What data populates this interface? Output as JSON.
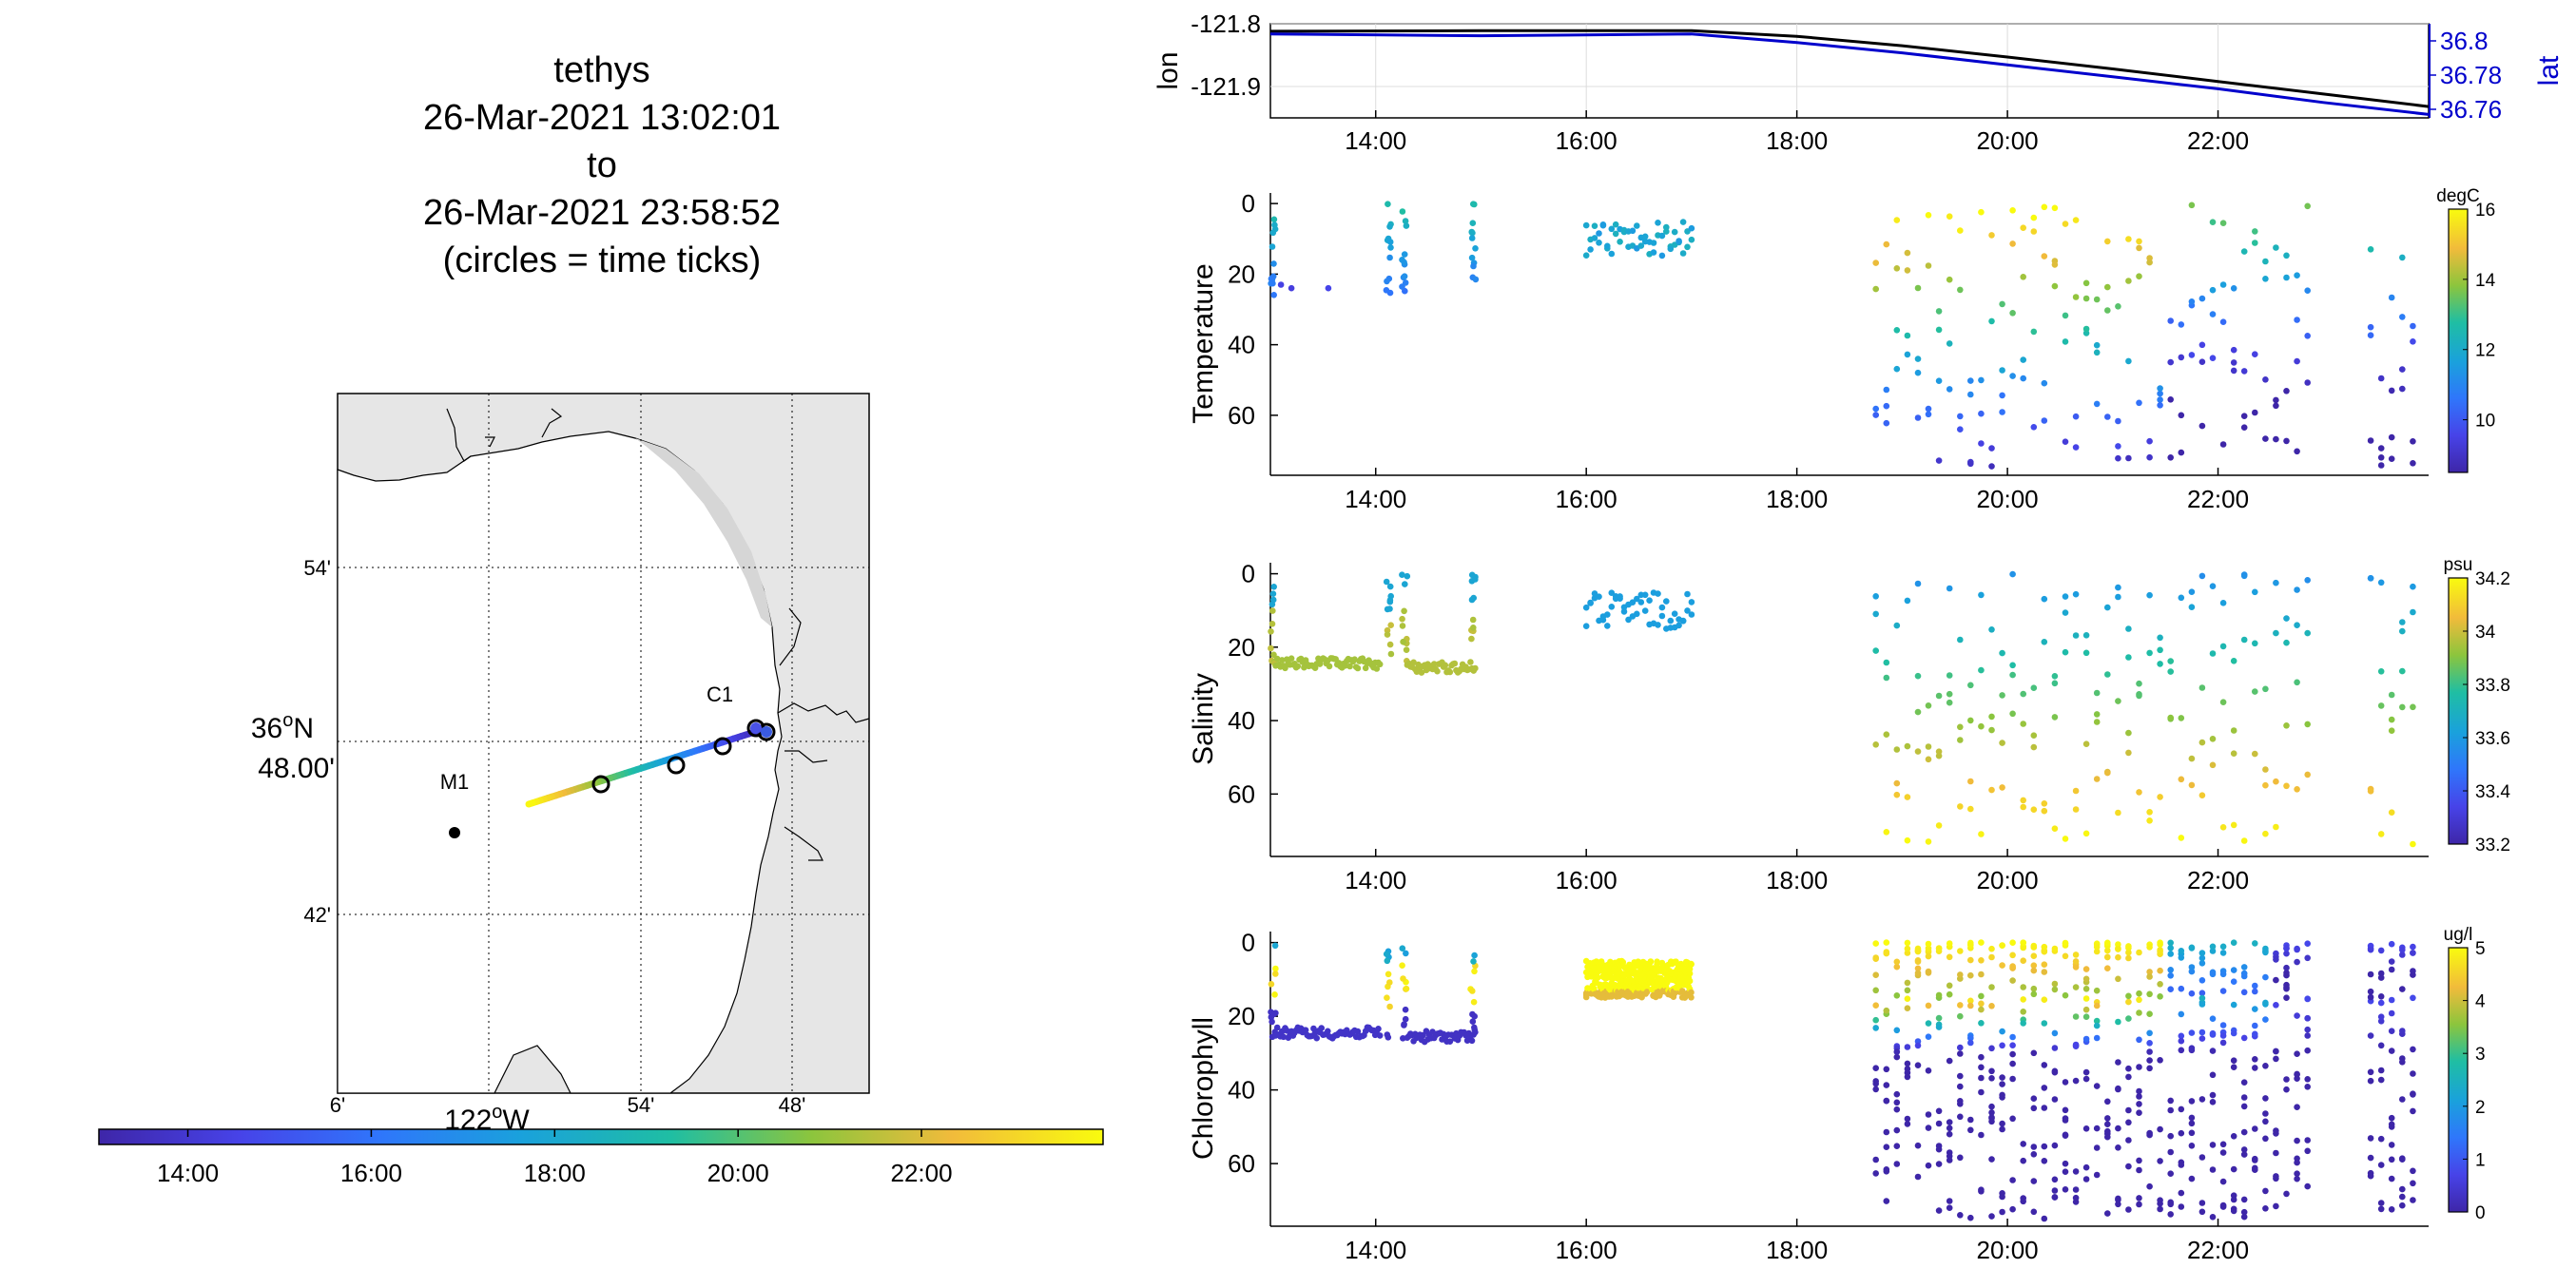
{
  "title": {
    "line1": "tethys",
    "line2": "26-Mar-2021 13:02:01",
    "line3": "to",
    "line4": "26-Mar-2021 23:58:52",
    "line5": "(circles = time ticks)"
  },
  "map": {
    "lat_ticks": [
      "54'",
      "42'"
    ],
    "lat_center_deg": "36",
    "lat_center_sup": "o",
    "lat_center_suffix": "N",
    "lat_center_min": "48.00'",
    "lon_ticks": [
      "6'",
      "54'",
      "48'"
    ],
    "lon_center_deg": "122",
    "lon_center_sup": "o",
    "lon_center_suffix": "W",
    "stations": [
      "M1",
      "C1"
    ],
    "colors": {
      "land": "#e6e6e6",
      "ocean": "#ffffff",
      "coast": "#000000"
    }
  },
  "time_colorbar": {
    "ticks": [
      "14:00",
      "16:00",
      "18:00",
      "20:00",
      "22:00"
    ],
    "range_hours": [
      13.03,
      23.98
    ]
  },
  "chart_data": [
    {
      "type": "line",
      "title": "",
      "xlabel": "",
      "ylabel": "lon",
      "ylabel_right": "lat",
      "x_ticks": [
        "14:00",
        "16:00",
        "18:00",
        "20:00",
        "22:00"
      ],
      "xlim_hours": [
        13.0,
        24.0
      ],
      "ylim_left": [
        -121.95,
        -121.8
      ],
      "ylim_right": [
        36.755,
        36.81
      ],
      "yticks_left": [
        "-121.8",
        "-121.9"
      ],
      "yticks_right": [
        "36.8",
        "36.78",
        "36.76"
      ],
      "grid": true,
      "series": [
        {
          "color": "#000000",
          "axis": "left",
          "x": [
            13.0,
            15.0,
            17.0,
            18.0,
            19.0,
            20.0,
            21.0,
            22.0,
            23.0,
            24.0
          ],
          "values": [
            -121.812,
            -121.811,
            -121.811,
            -121.82,
            -121.835,
            -121.853,
            -121.872,
            -121.892,
            -121.912,
            -121.932
          ]
        },
        {
          "color": "#0000cc",
          "axis": "right",
          "x": [
            13.0,
            15.0,
            17.0,
            18.0,
            19.0,
            20.0,
            21.0,
            22.0,
            23.0,
            24.0
          ],
          "values": [
            36.804,
            36.803,
            36.804,
            36.799,
            36.793,
            36.786,
            36.779,
            36.772,
            36.764,
            36.757
          ]
        }
      ]
    },
    {
      "type": "scatter",
      "ylabel": "Temperature",
      "colorbar_label": "degC",
      "colorbar_ticks": [
        "16",
        "14",
        "12",
        "10"
      ],
      "clim": [
        8.5,
        16.0
      ],
      "x_ticks": [
        "14:00",
        "16:00",
        "18:00",
        "20:00",
        "22:00"
      ],
      "yticks": [
        "0",
        "20",
        "40",
        "60"
      ],
      "ylim": [
        -3,
        77
      ],
      "note_values": "depth vs time, color = temperature"
    },
    {
      "type": "scatter",
      "ylabel": "Salinity",
      "colorbar_label": "psu",
      "colorbar_ticks": [
        "34.2",
        "34",
        "33.8",
        "33.6",
        "33.4",
        "33.2"
      ],
      "clim": [
        33.2,
        34.2
      ],
      "x_ticks": [
        "14:00",
        "16:00",
        "18:00",
        "20:00",
        "22:00"
      ],
      "yticks": [
        "0",
        "20",
        "40",
        "60"
      ],
      "ylim": [
        -3,
        77
      ]
    },
    {
      "type": "scatter",
      "ylabel": "Chlorophyll",
      "colorbar_label": "ug/l",
      "colorbar_ticks": [
        "5",
        "4",
        "3",
        "2",
        "1",
        "0"
      ],
      "clim": [
        0,
        5
      ],
      "x_ticks": [
        "14:00",
        "16:00",
        "18:00",
        "20:00",
        "22:00"
      ],
      "yticks": [
        "0",
        "20",
        "40",
        "60"
      ],
      "ylim": [
        -3,
        77
      ]
    }
  ]
}
